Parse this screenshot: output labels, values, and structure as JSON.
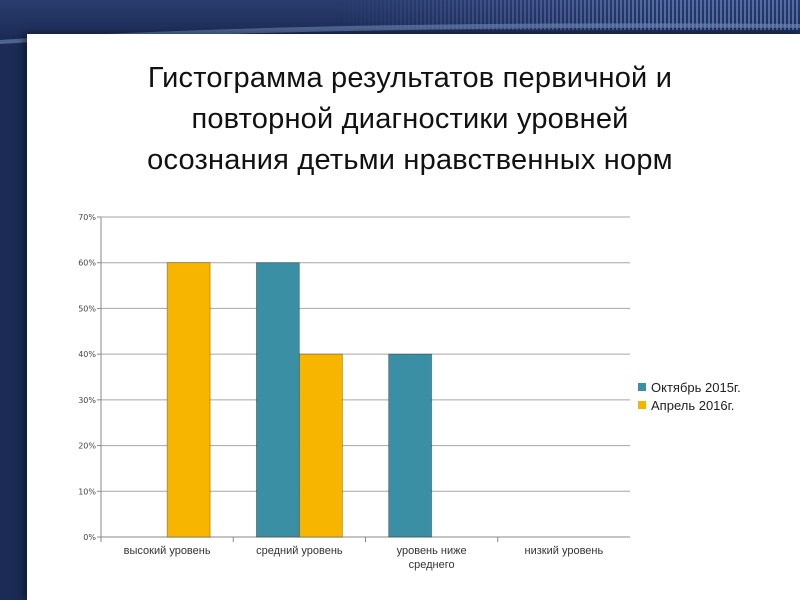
{
  "slide": {
    "title_lines": [
      "Гистограмма результатов первичной и",
      "повторной диагностики уровней",
      "осознания детьми нравственных норм"
    ]
  },
  "colors": {
    "series1": "#3a8fa4",
    "series2": "#f7b500",
    "grid": "#a6a6a6"
  },
  "chart_data": {
    "type": "bar",
    "title": "Гистограмма результатов первичной и повторной диагностики уровней осознания детьми нравственных норм",
    "categories": [
      {
        "lines": [
          "высокий уровень"
        ]
      },
      {
        "lines": [
          "средний уровень"
        ]
      },
      {
        "lines": [
          "уровень ниже",
          "среднего"
        ]
      },
      {
        "lines": [
          "низкий уровень"
        ]
      }
    ],
    "series": [
      {
        "name": "Октябрь 2015г.",
        "values": [
          0,
          60,
          40,
          0
        ]
      },
      {
        "name": "Апрель 2016г.",
        "values": [
          60,
          40,
          0,
          0
        ]
      }
    ],
    "ylim": [
      0,
      70
    ],
    "yticks": [
      "0%",
      "10%",
      "20%",
      "30%",
      "40%",
      "50%",
      "60%",
      "70%"
    ],
    "grid": true,
    "legend": "right"
  }
}
